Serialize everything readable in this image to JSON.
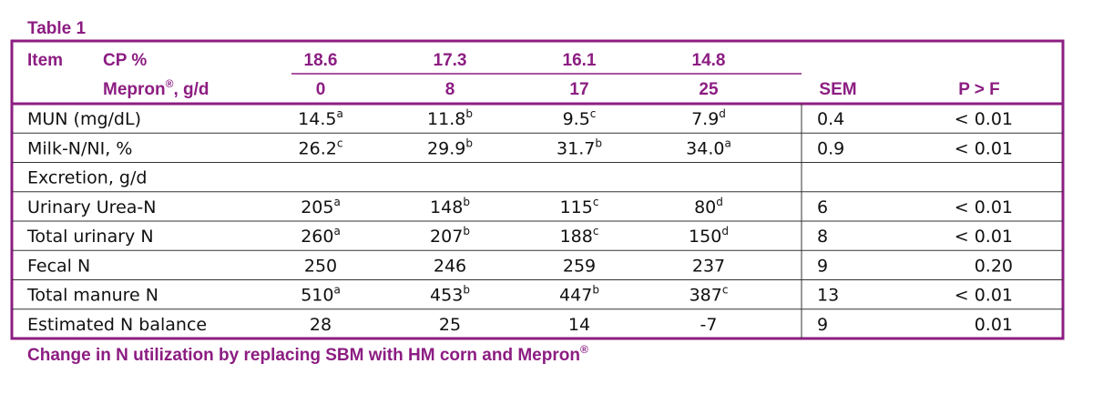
{
  "header": {
    "title": "Table 1"
  },
  "table": {
    "columns": {
      "item": "Item",
      "cp_label": "CP %",
      "cp": [
        "18.6",
        "17.3",
        "16.1",
        "14.8"
      ],
      "mepron_label": {
        "text": "Mepron",
        "sup": "®",
        "rest": ", g/d"
      },
      "mepron": [
        "0",
        "8",
        "17",
        "25"
      ],
      "sem": "SEM",
      "p": "P > F"
    },
    "rows": [
      {
        "label": "MUN (mg/dL)",
        "cells": [
          [
            "14.5",
            "a"
          ],
          [
            "11.8",
            "b"
          ],
          [
            "9.5",
            "c"
          ],
          [
            "7.9",
            "d"
          ]
        ],
        "sem": "0.4",
        "p": "< 0.01"
      },
      {
        "label": "Milk-N/NI, %",
        "cells": [
          [
            "26.2",
            "c"
          ],
          [
            "29.9",
            "b"
          ],
          [
            "31.7",
            "b"
          ],
          [
            "34.0",
            "a"
          ]
        ],
        "sem": "0.9",
        "p": "< 0.01"
      },
      {
        "label": "Excretion, g/d"
      },
      {
        "label": "Urinary Urea-N",
        "cells": [
          [
            "205",
            "a"
          ],
          [
            "148",
            "b"
          ],
          [
            "115",
            "c"
          ],
          [
            "80",
            "d"
          ]
        ],
        "sem": "6",
        "p": "< 0.01"
      },
      {
        "label": "Total urinary N",
        "cells": [
          [
            "260",
            "a"
          ],
          [
            "207",
            "b"
          ],
          [
            "188",
            "c"
          ],
          [
            "150",
            "d"
          ]
        ],
        "sem": "8",
        "p": "< 0.01"
      },
      {
        "label": "Fecal N",
        "cells": [
          [
            "250"
          ],
          [
            "246"
          ],
          [
            "259"
          ],
          [
            "237"
          ]
        ],
        "sem": "9",
        "p": "0.20"
      },
      {
        "label": "Total manure N",
        "cells": [
          [
            "510",
            "a"
          ],
          [
            "453",
            "b"
          ],
          [
            "447",
            "b"
          ],
          [
            "387",
            "c"
          ]
        ],
        "sem": "13",
        "p": "< 0.01"
      },
      {
        "label": "Estimated N balance",
        "cells": [
          [
            "28"
          ],
          [
            "25"
          ],
          [
            "14"
          ],
          [
            "-7"
          ]
        ],
        "sem": "9",
        "p": "0.01"
      }
    ]
  },
  "caption": {
    "text": "Change in N utilization by replacing SBM with HM corn and Mepron",
    "sup": "®"
  }
}
